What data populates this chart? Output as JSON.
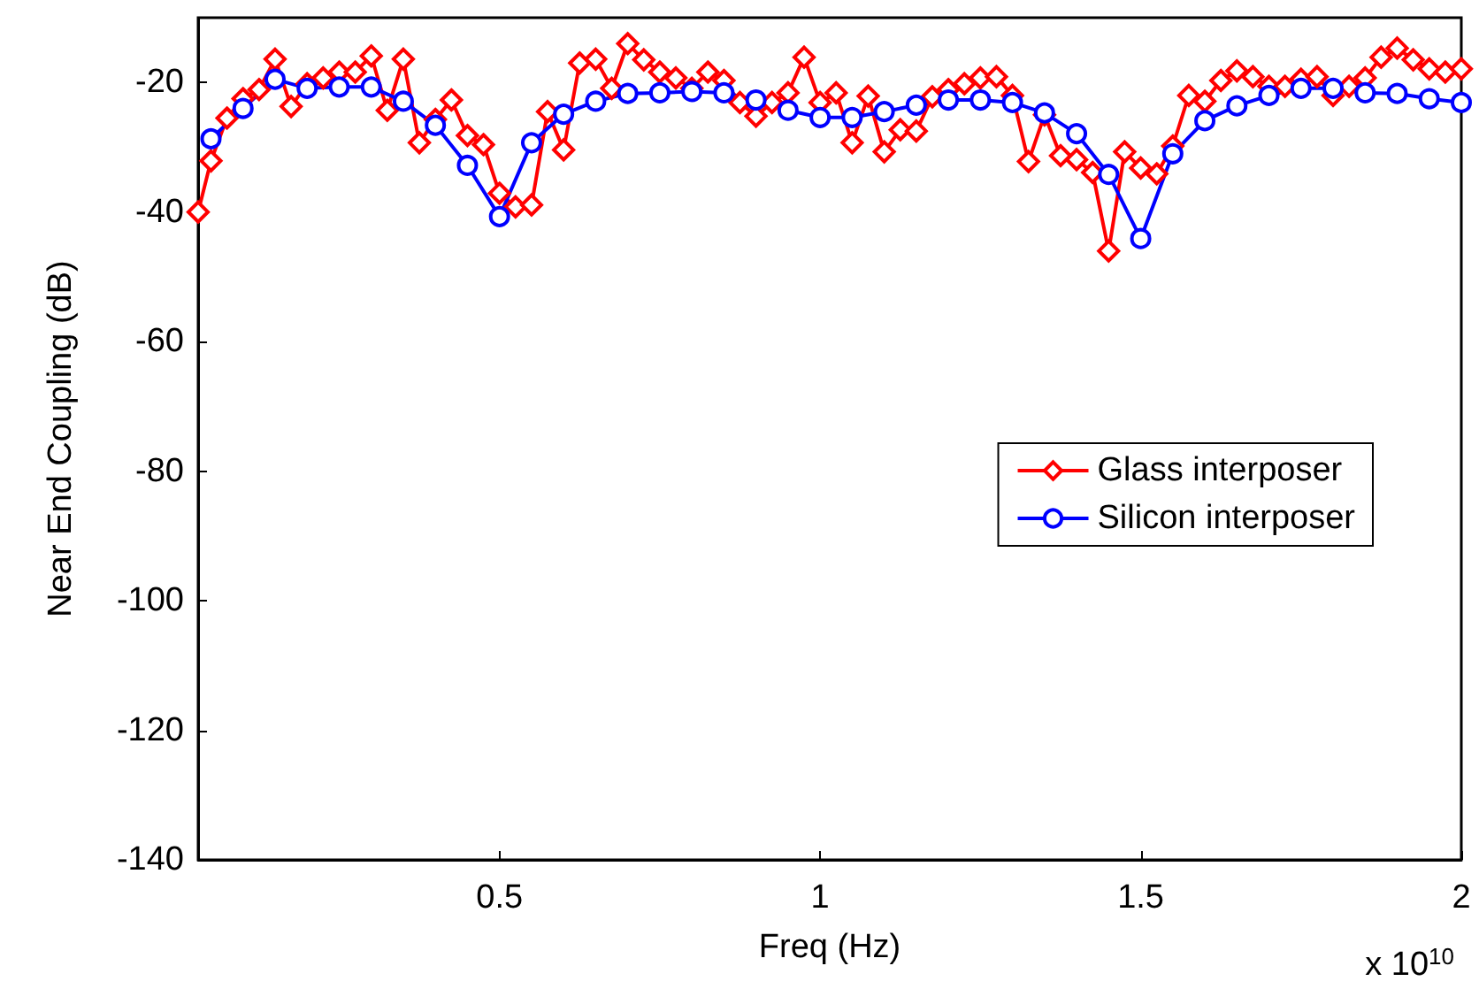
{
  "chart_data": {
    "type": "line",
    "xlabel": "Freq (Hz)",
    "ylabel": "Near End Coupling (dB)",
    "annotations": [
      "x 10$^{10}$"
    ],
    "xlim": [
      0.03,
      2
    ],
    "xticks": [
      0.5,
      1,
      1.5,
      2
    ],
    "ylim": [
      -140,
      -10
    ],
    "yticks": [
      -140,
      -120,
      -100,
      -80,
      -60,
      -40,
      -20
    ],
    "grid": false,
    "legend": "right",
    "series": [
      {
        "name": "Glass interposer",
        "color": "#ff0000",
        "marker": "diamond",
        "x": [
          0.03,
          0.05,
          0.075,
          0.1,
          0.125,
          0.15,
          0.175,
          0.2,
          0.225,
          0.25,
          0.275,
          0.3,
          0.325,
          0.35,
          0.375,
          0.4,
          0.425,
          0.45,
          0.475,
          0.5,
          0.525,
          0.55,
          0.575,
          0.6,
          0.625,
          0.65,
          0.675,
          0.7,
          0.725,
          0.75,
          0.775,
          0.8,
          0.825,
          0.85,
          0.875,
          0.9,
          0.925,
          0.95,
          0.975,
          1.0,
          1.025,
          1.05,
          1.075,
          1.1,
          1.125,
          1.15,
          1.175,
          1.2,
          1.225,
          1.25,
          1.275,
          1.3,
          1.325,
          1.35,
          1.375,
          1.4,
          1.425,
          1.45,
          1.475,
          1.5,
          1.525,
          1.55,
          1.575,
          1.6,
          1.625,
          1.65,
          1.675,
          1.7,
          1.725,
          1.75,
          1.775,
          1.8,
          1.825,
          1.85,
          1.875,
          1.9,
          1.925,
          1.95,
          1.975,
          2.0
        ],
        "values": [
          -40,
          -32.1,
          -25.5,
          -22.5,
          -21.1,
          -16.4,
          -23.7,
          -20.2,
          -19.3,
          -18.4,
          -18.4,
          -15.9,
          -24.3,
          -16.4,
          -29.3,
          -25.7,
          -22.7,
          -28.2,
          -29.6,
          -37.1,
          -39.2,
          -38.9,
          -24.5,
          -30.4,
          -17.0,
          -16.4,
          -20.9,
          -14.0,
          -16.5,
          -18.4,
          -19.3,
          -20.9,
          -18.4,
          -19.7,
          -23.1,
          -25.2,
          -23.1,
          -21.6,
          -16.1,
          -23.1,
          -21.6,
          -29.3,
          -22.1,
          -30.7,
          -27.3,
          -27.5,
          -22.2,
          -21.1,
          -20.2,
          -19.3,
          -19.1,
          -22.0,
          -32.2,
          -25.0,
          -31.3,
          -31.9,
          -33.9,
          -46.0,
          -30.7,
          -33.2,
          -34.1,
          -29.8,
          -22.0,
          -22.9,
          -19.7,
          -18.2,
          -19.1,
          -20.6,
          -20.6,
          -19.5,
          -19.1,
          -22.0,
          -20.6,
          -19.3,
          -16.1,
          -14.7,
          -16.5,
          -17.9,
          -18.4,
          -17.9
        ]
      },
      {
        "name": "Silicon interposer",
        "color": "#0000ff",
        "marker": "circle",
        "x": [
          0.05,
          0.1,
          0.15,
          0.2,
          0.25,
          0.3,
          0.35,
          0.4,
          0.45,
          0.5,
          0.55,
          0.6,
          0.65,
          0.7,
          0.75,
          0.8,
          0.85,
          0.9,
          0.95,
          1.0,
          1.05,
          1.1,
          1.15,
          1.2,
          1.25,
          1.3,
          1.35,
          1.4,
          1.45,
          1.5,
          1.55,
          1.6,
          1.65,
          1.7,
          1.75,
          1.8,
          1.85,
          1.9,
          1.95,
          2.0
        ],
        "values": [
          -28.7,
          -24.0,
          -19.5,
          -20.9,
          -20.7,
          -20.7,
          -22.9,
          -26.6,
          -32.8,
          -40.7,
          -29.3,
          -24.9,
          -22.9,
          -21.7,
          -21.6,
          -21.4,
          -21.6,
          -22.7,
          -24.3,
          -25.4,
          -25.4,
          -24.5,
          -23.5,
          -22.7,
          -22.7,
          -23.1,
          -24.7,
          -27.9,
          -34.2,
          -44.1,
          -31.0,
          -25.9,
          -23.6,
          -22.0,
          -20.9,
          -20.9,
          -21.6,
          -21.7,
          -22.5,
          -23.1
        ]
      }
    ]
  }
}
